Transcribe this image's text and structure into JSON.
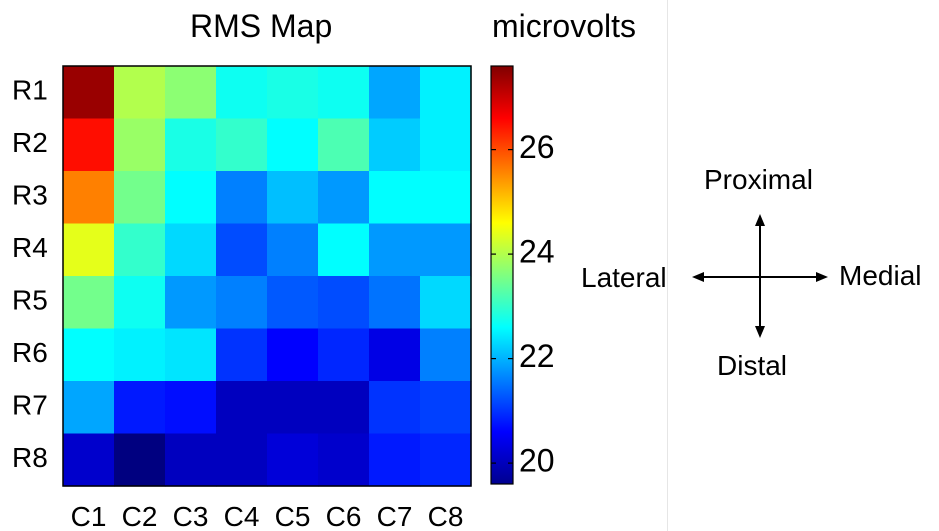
{
  "chart_data": {
    "type": "heatmap",
    "title": "RMS Map",
    "colorbar_label": "microvolts",
    "colormap": "jet",
    "rows": [
      "R1",
      "R2",
      "R3",
      "R4",
      "R5",
      "R6",
      "R7",
      "R8"
    ],
    "columns": [
      "C1",
      "C2",
      "C3",
      "C4",
      "C5",
      "C6",
      "C7",
      "C8"
    ],
    "values": [
      [
        27.4,
        24.0,
        23.7,
        22.7,
        22.8,
        22.7,
        21.9,
        22.5
      ],
      [
        26.5,
        23.8,
        22.8,
        23.0,
        22.6,
        23.2,
        22.2,
        22.5
      ],
      [
        25.6,
        23.5,
        22.6,
        21.6,
        22.1,
        21.8,
        22.6,
        22.6
      ],
      [
        24.4,
        23.0,
        22.3,
        21.2,
        21.6,
        22.6,
        21.8,
        21.8
      ],
      [
        23.5,
        22.7,
        21.8,
        21.6,
        21.3,
        21.2,
        21.5,
        22.3
      ],
      [
        22.6,
        22.5,
        22.4,
        21.0,
        20.6,
        20.9,
        20.4,
        21.6
      ],
      [
        21.9,
        20.8,
        20.7,
        20.1,
        20.1,
        20.1,
        21.0,
        21.1
      ],
      [
        20.2,
        19.6,
        20.1,
        20.1,
        20.3,
        20.2,
        20.8,
        20.9
      ]
    ],
    "colorbar_range": [
      19.6,
      27.6
    ],
    "colorbar_ticks": [
      20,
      22,
      24,
      26
    ]
  },
  "compass": {
    "proximal": "Proximal",
    "distal": "Distal",
    "lateral": "Lateral",
    "medial": "Medial"
  }
}
